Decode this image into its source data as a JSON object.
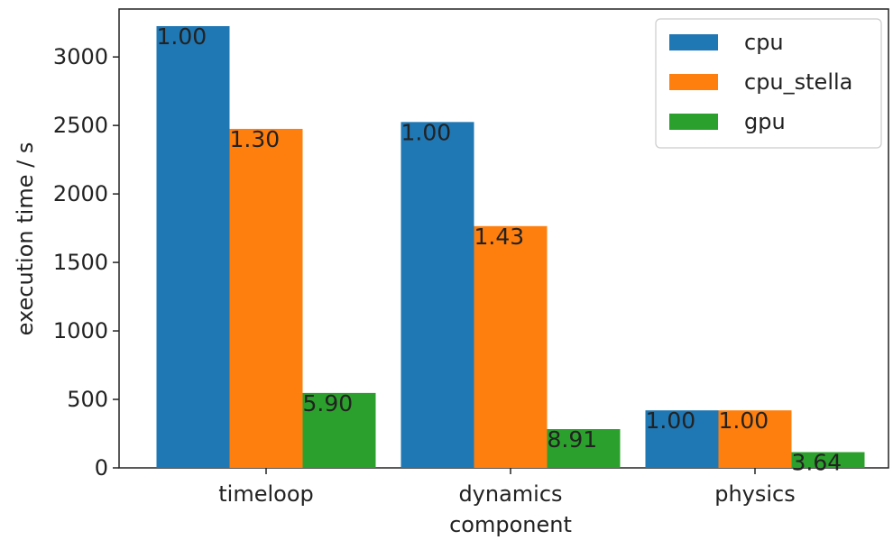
{
  "chart_data": {
    "type": "bar",
    "title": "",
    "xlabel": "component",
    "ylabel": "execution time / s",
    "categories": [
      "timeloop",
      "dynamics",
      "physics"
    ],
    "series": [
      {
        "name": "cpu",
        "color": "#1f77b4",
        "values": [
          3225,
          2525,
          420
        ],
        "labels": [
          "1.00",
          "1.00",
          "1.00"
        ]
      },
      {
        "name": "cpu_stella",
        "color": "#ff7f0e",
        "values": [
          2475,
          1765,
          420
        ],
        "labels": [
          "1.30",
          "1.43",
          "1.00"
        ]
      },
      {
        "name": "gpu",
        "color": "#2ca02c",
        "values": [
          547,
          283,
          115
        ],
        "labels": [
          "5.90",
          "8.91",
          "3.64"
        ]
      }
    ],
    "ylim": [
      0,
      3350
    ],
    "yticks": [
      0,
      500,
      1000,
      1500,
      2000,
      2500,
      3000
    ],
    "grid": false,
    "legend_position": "top-right"
  }
}
